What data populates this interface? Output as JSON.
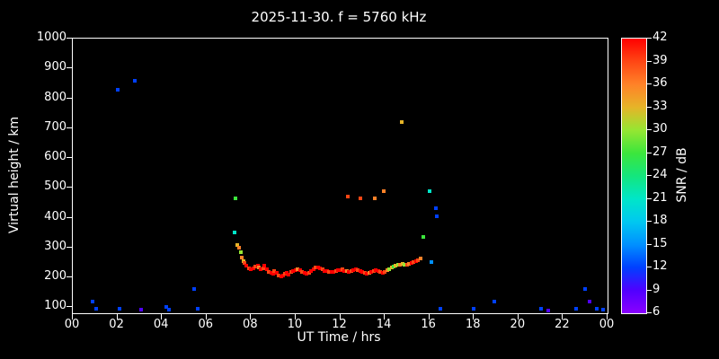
{
  "chart_data": {
    "type": "scatter",
    "title": "2025-11-30. f = 5760 kHz",
    "xlabel": "UT Time / hrs",
    "ylabel": "Virtual height / km",
    "colorbar_label": "SNR / dB",
    "xlim": [
      0,
      24
    ],
    "ylim": [
      80,
      1000
    ],
    "grid": false,
    "xticks": [
      {
        "t": 0,
        "label": "00"
      },
      {
        "t": 2,
        "label": "02"
      },
      {
        "t": 4,
        "label": "04"
      },
      {
        "t": 6,
        "label": "06"
      },
      {
        "t": 8,
        "label": "08"
      },
      {
        "t": 10,
        "label": "10"
      },
      {
        "t": 12,
        "label": "12"
      },
      {
        "t": 14,
        "label": "14"
      },
      {
        "t": 16,
        "label": "16"
      },
      {
        "t": 18,
        "label": "18"
      },
      {
        "t": 20,
        "label": "20"
      },
      {
        "t": 22,
        "label": "22"
      },
      {
        "t": 24,
        "label": "00"
      }
    ],
    "yticks": [
      100,
      200,
      300,
      400,
      500,
      600,
      700,
      800,
      900,
      1000
    ],
    "colorbar_ticks": [
      6,
      9,
      12,
      15,
      18,
      21,
      24,
      27,
      30,
      33,
      36,
      39,
      42
    ],
    "color_stops": [
      {
        "v": 6,
        "c": "#8a00ff"
      },
      {
        "v": 9,
        "c": "#5000ff"
      },
      {
        "v": 12,
        "c": "#0040ff"
      },
      {
        "v": 15,
        "c": "#0090ff"
      },
      {
        "v": 18,
        "c": "#00c8f0"
      },
      {
        "v": 21,
        "c": "#00e6c8"
      },
      {
        "v": 24,
        "c": "#14e67d"
      },
      {
        "v": 27,
        "c": "#3ce63c"
      },
      {
        "v": 30,
        "c": "#96e632"
      },
      {
        "v": 33,
        "c": "#e6b428"
      },
      {
        "v": 36,
        "c": "#ff8228"
      },
      {
        "v": 39,
        "c": "#ff4614"
      },
      {
        "v": 42,
        "c": "#ff0000"
      }
    ],
    "points": [
      [
        0.9,
        120,
        12
      ],
      [
        1.05,
        95,
        12
      ],
      [
        2.0,
        828,
        12
      ],
      [
        2.1,
        95,
        12
      ],
      [
        2.8,
        858,
        12
      ],
      [
        3.05,
        92,
        9
      ],
      [
        4.2,
        100,
        12
      ],
      [
        4.3,
        92,
        12
      ],
      [
        5.45,
        160,
        12
      ],
      [
        5.6,
        95,
        12
      ],
      [
        7.25,
        350,
        21
      ],
      [
        7.3,
        465,
        27
      ],
      [
        7.4,
        310,
        33
      ],
      [
        7.45,
        300,
        36
      ],
      [
        7.55,
        285,
        30
      ],
      [
        7.6,
        265,
        36
      ],
      [
        7.65,
        255,
        33
      ],
      [
        7.7,
        248,
        39
      ],
      [
        7.8,
        238,
        42
      ],
      [
        7.9,
        230,
        39
      ],
      [
        8.0,
        226,
        42
      ],
      [
        8.1,
        230,
        42
      ],
      [
        8.2,
        236,
        39
      ],
      [
        8.3,
        240,
        42
      ],
      [
        8.35,
        232,
        36
      ],
      [
        8.45,
        228,
        42
      ],
      [
        8.55,
        230,
        39
      ],
      [
        8.6,
        238,
        42
      ],
      [
        8.7,
        226,
        42
      ],
      [
        8.8,
        218,
        39
      ],
      [
        8.9,
        214,
        42
      ],
      [
        9.0,
        212,
        42
      ],
      [
        9.05,
        220,
        39
      ],
      [
        9.15,
        215,
        42
      ],
      [
        9.25,
        206,
        39
      ],
      [
        9.35,
        203,
        42
      ],
      [
        9.45,
        205,
        42
      ],
      [
        9.5,
        212,
        39
      ],
      [
        9.6,
        215,
        42
      ],
      [
        9.7,
        210,
        42
      ],
      [
        9.8,
        218,
        39
      ],
      [
        9.9,
        222,
        42
      ],
      [
        10.0,
        225,
        42
      ],
      [
        10.1,
        228,
        36
      ],
      [
        10.2,
        224,
        42
      ],
      [
        10.3,
        218,
        39
      ],
      [
        10.4,
        214,
        42
      ],
      [
        10.5,
        212,
        42
      ],
      [
        10.6,
        216,
        39
      ],
      [
        10.7,
        222,
        42
      ],
      [
        10.8,
        228,
        42
      ],
      [
        10.9,
        232,
        39
      ],
      [
        11.0,
        234,
        42
      ],
      [
        11.1,
        230,
        42
      ],
      [
        11.2,
        226,
        39
      ],
      [
        11.3,
        222,
        42
      ],
      [
        11.4,
        220,
        42
      ],
      [
        11.5,
        218,
        39
      ],
      [
        11.6,
        217,
        42
      ],
      [
        11.7,
        219,
        42
      ],
      [
        11.8,
        221,
        39
      ],
      [
        11.9,
        223,
        42
      ],
      [
        12.0,
        224,
        42
      ],
      [
        12.1,
        226,
        39
      ],
      [
        12.2,
        222,
        42
      ],
      [
        12.3,
        220,
        36
      ],
      [
        12.4,
        218,
        42
      ],
      [
        12.5,
        221,
        39
      ],
      [
        12.6,
        224,
        42
      ],
      [
        12.7,
        226,
        42
      ],
      [
        12.8,
        223,
        39
      ],
      [
        12.9,
        220,
        42
      ],
      [
        13.0,
        218,
        42
      ],
      [
        13.1,
        215,
        39
      ],
      [
        13.2,
        213,
        42
      ],
      [
        13.3,
        216,
        36
      ],
      [
        13.4,
        219,
        42
      ],
      [
        13.5,
        221,
        39
      ],
      [
        13.6,
        223,
        42
      ],
      [
        13.7,
        221,
        42
      ],
      [
        13.8,
        218,
        39
      ],
      [
        13.9,
        216,
        42
      ],
      [
        14.0,
        219,
        39
      ],
      [
        14.1,
        223,
        36
      ],
      [
        14.2,
        228,
        30
      ],
      [
        14.3,
        232,
        33
      ],
      [
        14.4,
        236,
        27
      ],
      [
        14.5,
        239,
        33
      ],
      [
        14.6,
        241,
        30
      ],
      [
        14.7,
        243,
        36
      ],
      [
        14.8,
        246,
        33
      ],
      [
        14.9,
        243,
        30
      ],
      [
        15.0,
        241,
        39
      ],
      [
        15.1,
        245,
        36
      ],
      [
        15.2,
        248,
        42
      ],
      [
        15.3,
        251,
        39
      ],
      [
        15.4,
        255,
        42
      ],
      [
        15.5,
        258,
        39
      ],
      [
        15.6,
        262,
        36
      ],
      [
        12.35,
        470,
        39
      ],
      [
        12.9,
        465,
        39
      ],
      [
        13.55,
        465,
        36
      ],
      [
        13.95,
        490,
        36
      ],
      [
        14.75,
        720,
        33
      ],
      [
        15.75,
        335,
        27
      ],
      [
        16.0,
        490,
        21
      ],
      [
        16.1,
        250,
        15
      ],
      [
        16.3,
        432,
        12
      ],
      [
        16.35,
        405,
        12
      ],
      [
        16.5,
        95,
        12
      ],
      [
        18.0,
        95,
        12
      ],
      [
        18.9,
        120,
        12
      ],
      [
        21.0,
        95,
        12
      ],
      [
        21.35,
        88,
        9
      ],
      [
        22.6,
        95,
        12
      ],
      [
        23.0,
        160,
        12
      ],
      [
        23.2,
        120,
        9
      ],
      [
        23.5,
        95,
        12
      ],
      [
        23.8,
        92,
        12
      ]
    ]
  }
}
